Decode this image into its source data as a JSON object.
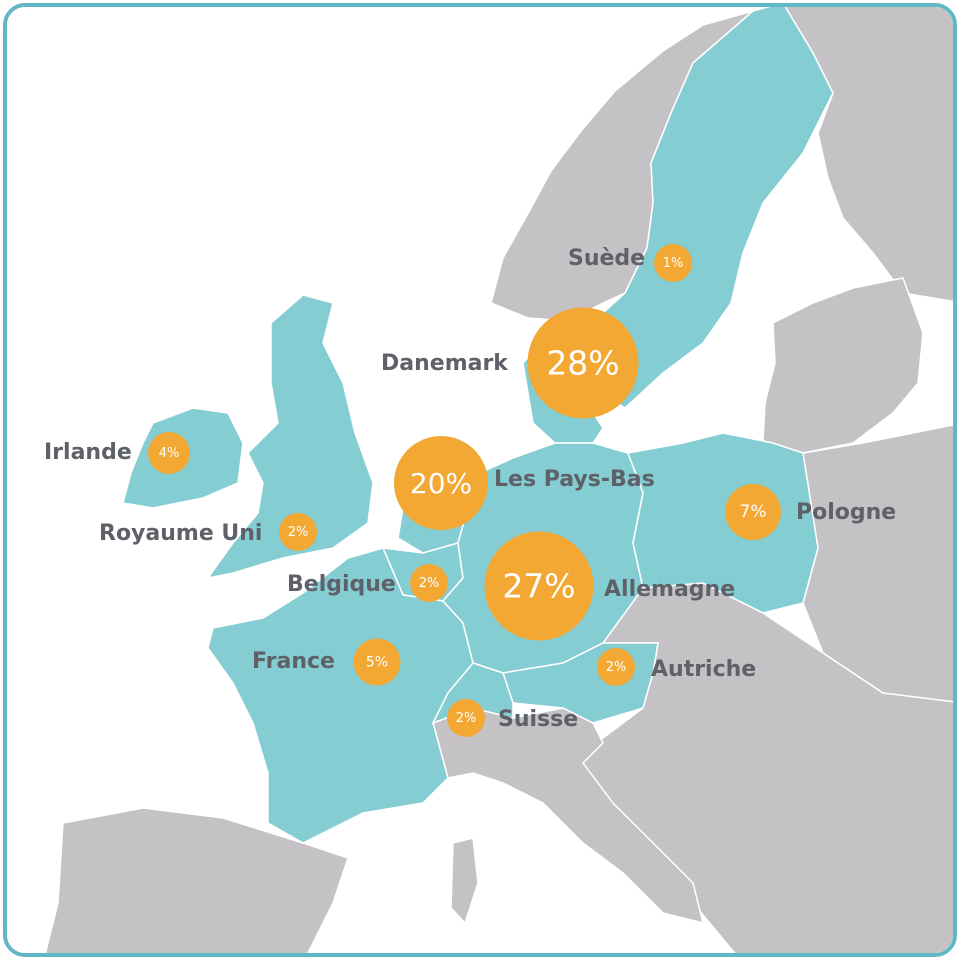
{
  "colors": {
    "highlight_land": "#84cdd2",
    "other_land": "#c4c2c4",
    "sea": "#ffffff",
    "border_lines": "#ffffff",
    "bubble": "#f2a833",
    "label_text": "#5e6168",
    "frame": "#5fb8c4"
  },
  "countries": [
    {
      "id": "sweden",
      "name": "Suède",
      "percent": "1%",
      "value": 1
    },
    {
      "id": "denmark",
      "name": "Danemark",
      "percent": "28%",
      "value": 28
    },
    {
      "id": "ireland",
      "name": "Irlande",
      "percent": "4%",
      "value": 4
    },
    {
      "id": "netherlands",
      "name": "Les Pays-Bas",
      "percent": "20%",
      "value": 20
    },
    {
      "id": "uk",
      "name": "Royaume Uni",
      "percent": "2%",
      "value": 2
    },
    {
      "id": "poland",
      "name": "Pologne",
      "percent": "7%",
      "value": 7
    },
    {
      "id": "belgium",
      "name": "Belgique",
      "percent": "2%",
      "value": 2
    },
    {
      "id": "germany",
      "name": "Allemagne",
      "percent": "27%",
      "value": 27
    },
    {
      "id": "france",
      "name": "France",
      "percent": "5%",
      "value": 5
    },
    {
      "id": "austria",
      "name": "Autriche",
      "percent": "2%",
      "value": 2
    },
    {
      "id": "switzerland",
      "name": "Suisse",
      "percent": "2%",
      "value": 2
    }
  ]
}
